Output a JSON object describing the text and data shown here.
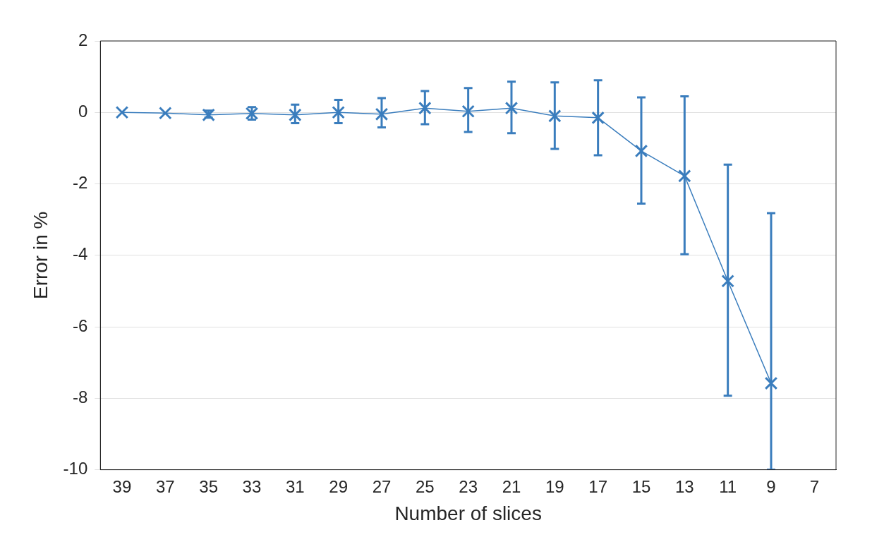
{
  "chart_data": {
    "type": "line",
    "xlabel": "Number of slices",
    "ylabel": "Error in %",
    "categories": [
      "39",
      "37",
      "35",
      "33",
      "31",
      "29",
      "27",
      "25",
      "23",
      "21",
      "19",
      "17",
      "15",
      "13",
      "11",
      "9",
      "7"
    ],
    "series": [
      {
        "color": "#3a7dbd",
        "values": [
          0,
          -0.02,
          -0.07,
          -0.03,
          -0.07,
          0,
          -0.05,
          0.12,
          0.03,
          0.12,
          -0.1,
          -0.15,
          -1.08,
          -1.78,
          -4.72,
          -7.58,
          null
        ],
        "errors": [
          null,
          null,
          [
            -0.15,
            0.05
          ],
          [
            -0.2,
            0.15
          ],
          [
            -0.3,
            0.22
          ],
          [
            -0.3,
            0.35
          ],
          [
            -0.42,
            0.4
          ],
          [
            -0.33,
            0.6
          ],
          [
            -0.55,
            0.68
          ],
          [
            -0.58,
            0.86
          ],
          [
            -1.02,
            0.84
          ],
          [
            -1.2,
            0.9
          ],
          [
            -2.55,
            0.42
          ],
          [
            -3.97,
            0.45
          ],
          [
            -7.93,
            -1.46
          ],
          [
            -10,
            -2.82
          ],
          null
        ]
      }
    ],
    "ylim": [
      -10,
      2
    ],
    "yticks": [
      -10,
      -8,
      -6,
      -4,
      -2,
      0,
      2
    ],
    "grid": "y",
    "legend": false,
    "marker": "cross",
    "line_style": "solid"
  }
}
